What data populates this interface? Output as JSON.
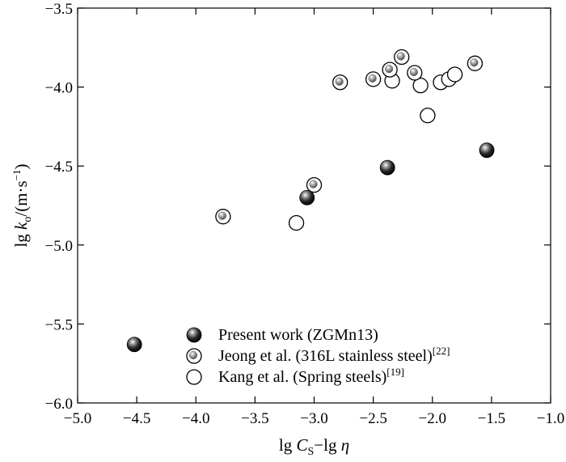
{
  "chart_data": {
    "type": "scatter",
    "xlim": [
      -5.0,
      -1.0
    ],
    "ylim": [
      -6.0,
      -3.5
    ],
    "x_ticks": [
      -5.0,
      -4.5,
      -4.0,
      -3.5,
      -3.0,
      -2.5,
      -2.0,
      -1.5,
      -1.0
    ],
    "x_tick_labels": [
      "−5.0",
      "−4.5",
      "−4.0",
      "−3.5",
      "−3.0",
      "−2.5",
      "−2.0",
      "−1.5",
      "−1.0"
    ],
    "y_ticks": [
      -6.0,
      -5.5,
      -5.0,
      -4.5,
      -4.0,
      -3.5
    ],
    "y_tick_labels": [
      "−6.0",
      "−5.5",
      "−5.0",
      "−4.5",
      "−4.0",
      "−3.5"
    ],
    "xlabel": {
      "base": "lg ",
      "var": "C",
      "sub": "S",
      "rest": "−lg ",
      "var2": "η"
    },
    "ylabel": {
      "base": "lg ",
      "var": "k",
      "sub": "o",
      "rest": "/(m·s",
      "sup": "−1",
      "close": ")"
    },
    "grid": false,
    "legend_position": "bottom-center",
    "series": [
      {
        "name": "Present work (ZGMn13)",
        "marker": "solid-sphere",
        "color": "#111111",
        "points": [
          {
            "x": -4.52,
            "y": -5.63
          },
          {
            "x": -3.06,
            "y": -4.7
          },
          {
            "x": -2.38,
            "y": -4.51
          },
          {
            "x": -1.54,
            "y": -4.4
          }
        ]
      },
      {
        "name": "Jeong et al. (316L stainless steel)",
        "sup": "[22]",
        "marker": "small-sphere-in-ring",
        "color": "#888888",
        "points": [
          {
            "x": -3.77,
            "y": -4.82
          },
          {
            "x": -3.0,
            "y": -4.62
          },
          {
            "x": -2.78,
            "y": -3.97
          },
          {
            "x": -2.5,
            "y": -3.95
          },
          {
            "x": -2.36,
            "y": -3.89
          },
          {
            "x": -2.26,
            "y": -3.81
          },
          {
            "x": -2.15,
            "y": -3.91
          },
          {
            "x": -1.64,
            "y": -3.85
          }
        ]
      },
      {
        "name": "Kang et al. (Spring steels)",
        "sup": "[19]",
        "marker": "open-circle",
        "color": "#000000",
        "points": [
          {
            "x": -3.15,
            "y": -4.86
          },
          {
            "x": -2.34,
            "y": -3.96
          },
          {
            "x": -2.1,
            "y": -3.99
          },
          {
            "x": -2.04,
            "y": -4.18
          },
          {
            "x": -1.93,
            "y": -3.97
          },
          {
            "x": -1.86,
            "y": -3.95
          },
          {
            "x": -1.81,
            "y": -3.92
          }
        ]
      }
    ]
  }
}
